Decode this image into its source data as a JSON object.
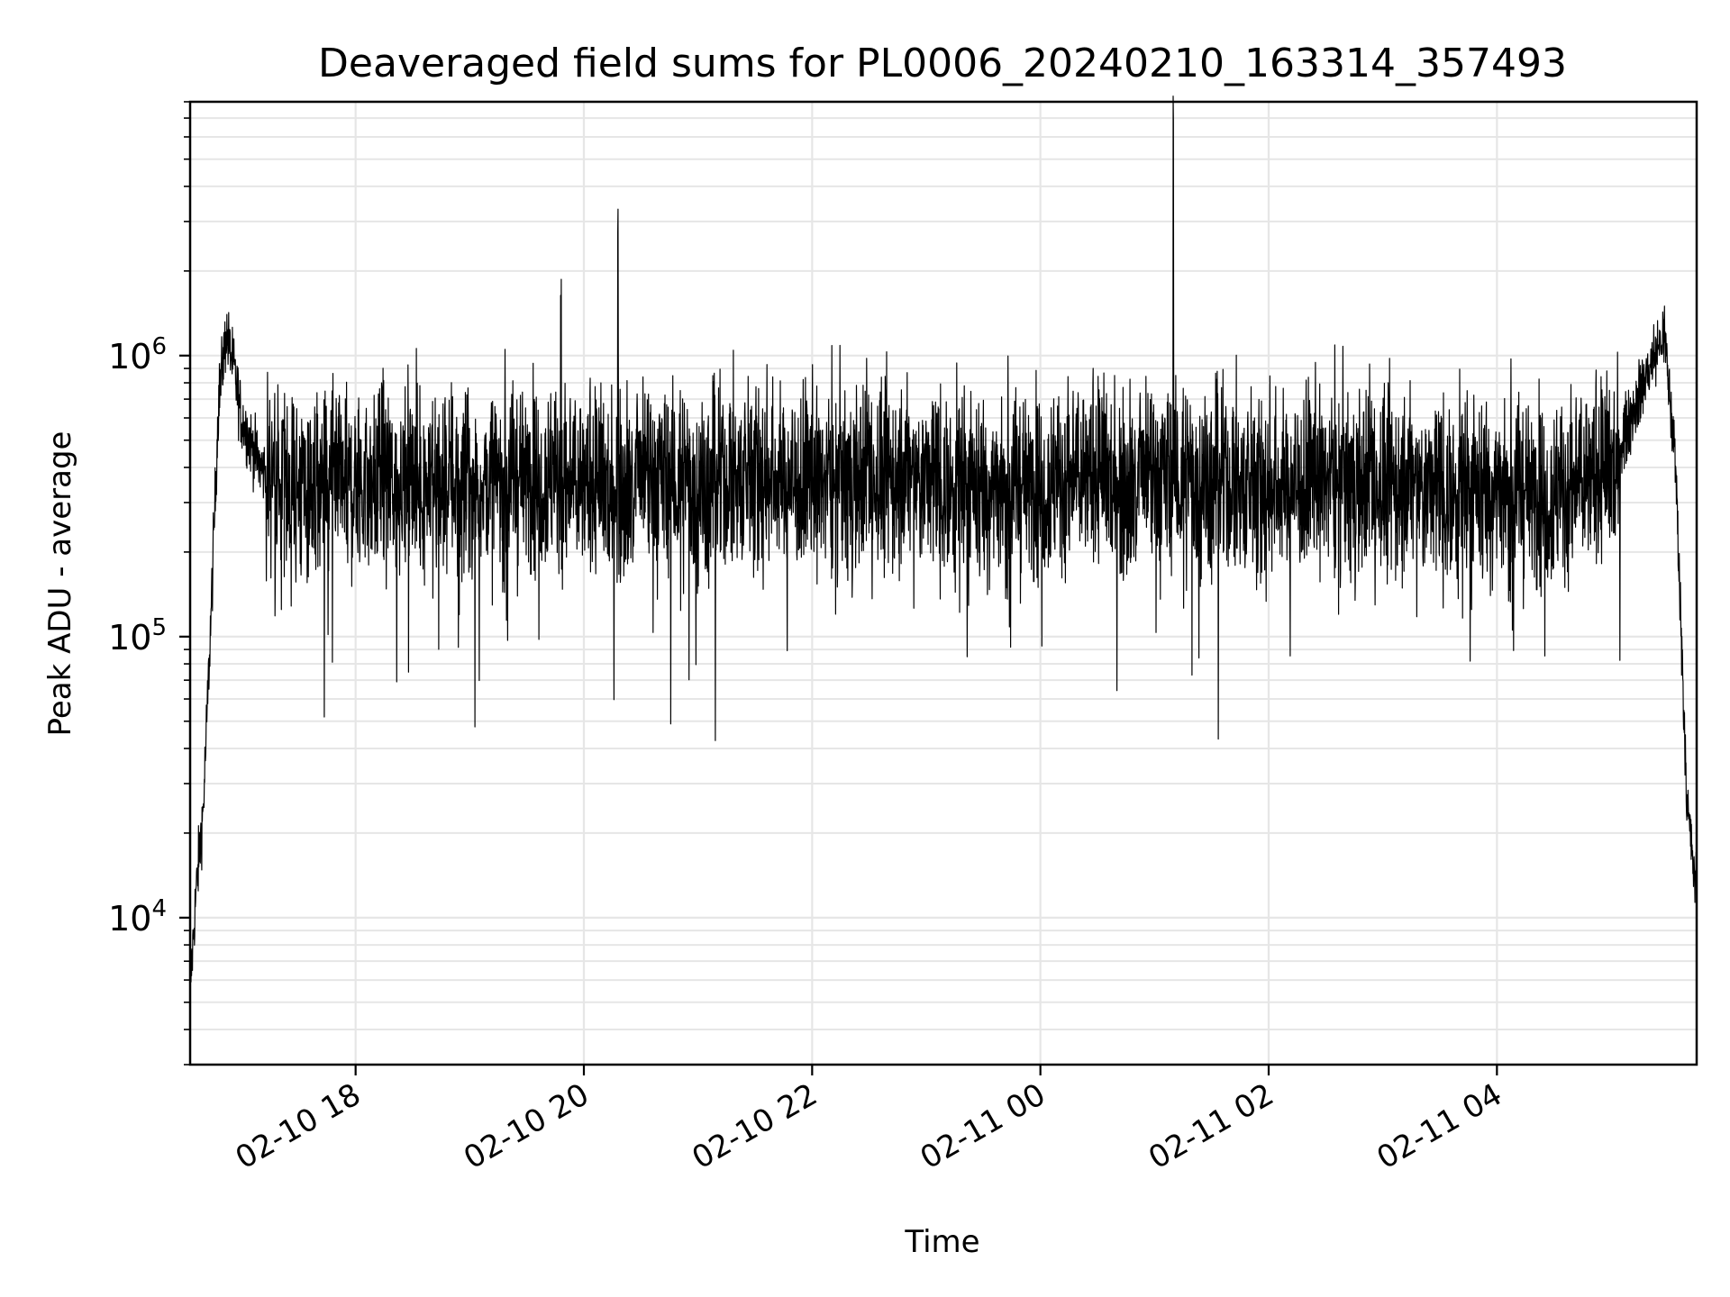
{
  "chart_data": {
    "type": "line",
    "title": "Deaveraged field sums for PL0006_20240210_163314_357493",
    "xlabel": "Time",
    "ylabel": "Peak ADU - average",
    "x_range": [
      "2024-02-10 16:33",
      "2024-02-11 05:45"
    ],
    "ylim": [
      3000,
      8000000
    ],
    "y_scale": "log",
    "grid": true,
    "x_ticks": [
      "02-10 18",
      "02-10 20",
      "02-10 22",
      "02-11 00",
      "02-11 02",
      "02-11 04"
    ],
    "y_ticks": [
      {
        "base": "10",
        "exp": "4"
      },
      {
        "base": "10",
        "exp": "5"
      },
      {
        "base": "10",
        "exp": "6"
      }
    ],
    "series": [
      {
        "color": "#000000",
        "x": [
          "2024-02-10 16:33",
          "2024-02-10 16:36",
          "2024-02-10 16:40",
          "2024-02-10 16:44",
          "2024-02-10 16:48",
          "2024-02-10 16:52",
          "2024-02-10 16:56",
          "2024-02-10 17:00",
          "2024-02-10 17:10",
          "2024-02-10 17:20",
          "2024-02-10 17:40",
          "2024-02-10 18:00",
          "2024-02-10 18:30",
          "2024-02-10 19:00",
          "2024-02-10 19:30",
          "2024-02-10 19:48",
          "2024-02-10 20:00",
          "2024-02-10 20:18",
          "2024-02-10 20:40",
          "2024-02-10 21:00",
          "2024-02-10 21:30",
          "2024-02-10 22:00",
          "2024-02-10 22:30",
          "2024-02-10 23:00",
          "2024-02-10 23:35",
          "2024-02-11 00:00",
          "2024-02-11 00:30",
          "2024-02-11 01:00",
          "2024-02-11 01:10",
          "2024-02-11 01:30",
          "2024-02-11 02:00",
          "2024-02-11 02:30",
          "2024-02-11 03:00",
          "2024-02-11 03:30",
          "2024-02-11 04:00",
          "2024-02-11 04:30",
          "2024-02-11 05:00",
          "2024-02-11 05:10",
          "2024-02-11 05:20",
          "2024-02-11 05:28",
          "2024-02-11 05:34",
          "2024-02-11 05:40",
          "2024-02-11 05:45"
        ],
        "values": [
          5500,
          12000,
          25000,
          120000,
          700000,
          1200000,
          900000,
          600000,
          400000,
          350000,
          330000,
          340000,
          360000,
          350000,
          370000,
          1750000,
          340000,
          2200000,
          360000,
          330000,
          380000,
          350000,
          370000,
          360000,
          340000,
          350000,
          370000,
          360000,
          5500000,
          350000,
          340000,
          360000,
          350000,
          330000,
          340000,
          320000,
          380000,
          600000,
          900000,
          1200000,
          400000,
          25000,
          12000
        ]
      }
    ]
  }
}
